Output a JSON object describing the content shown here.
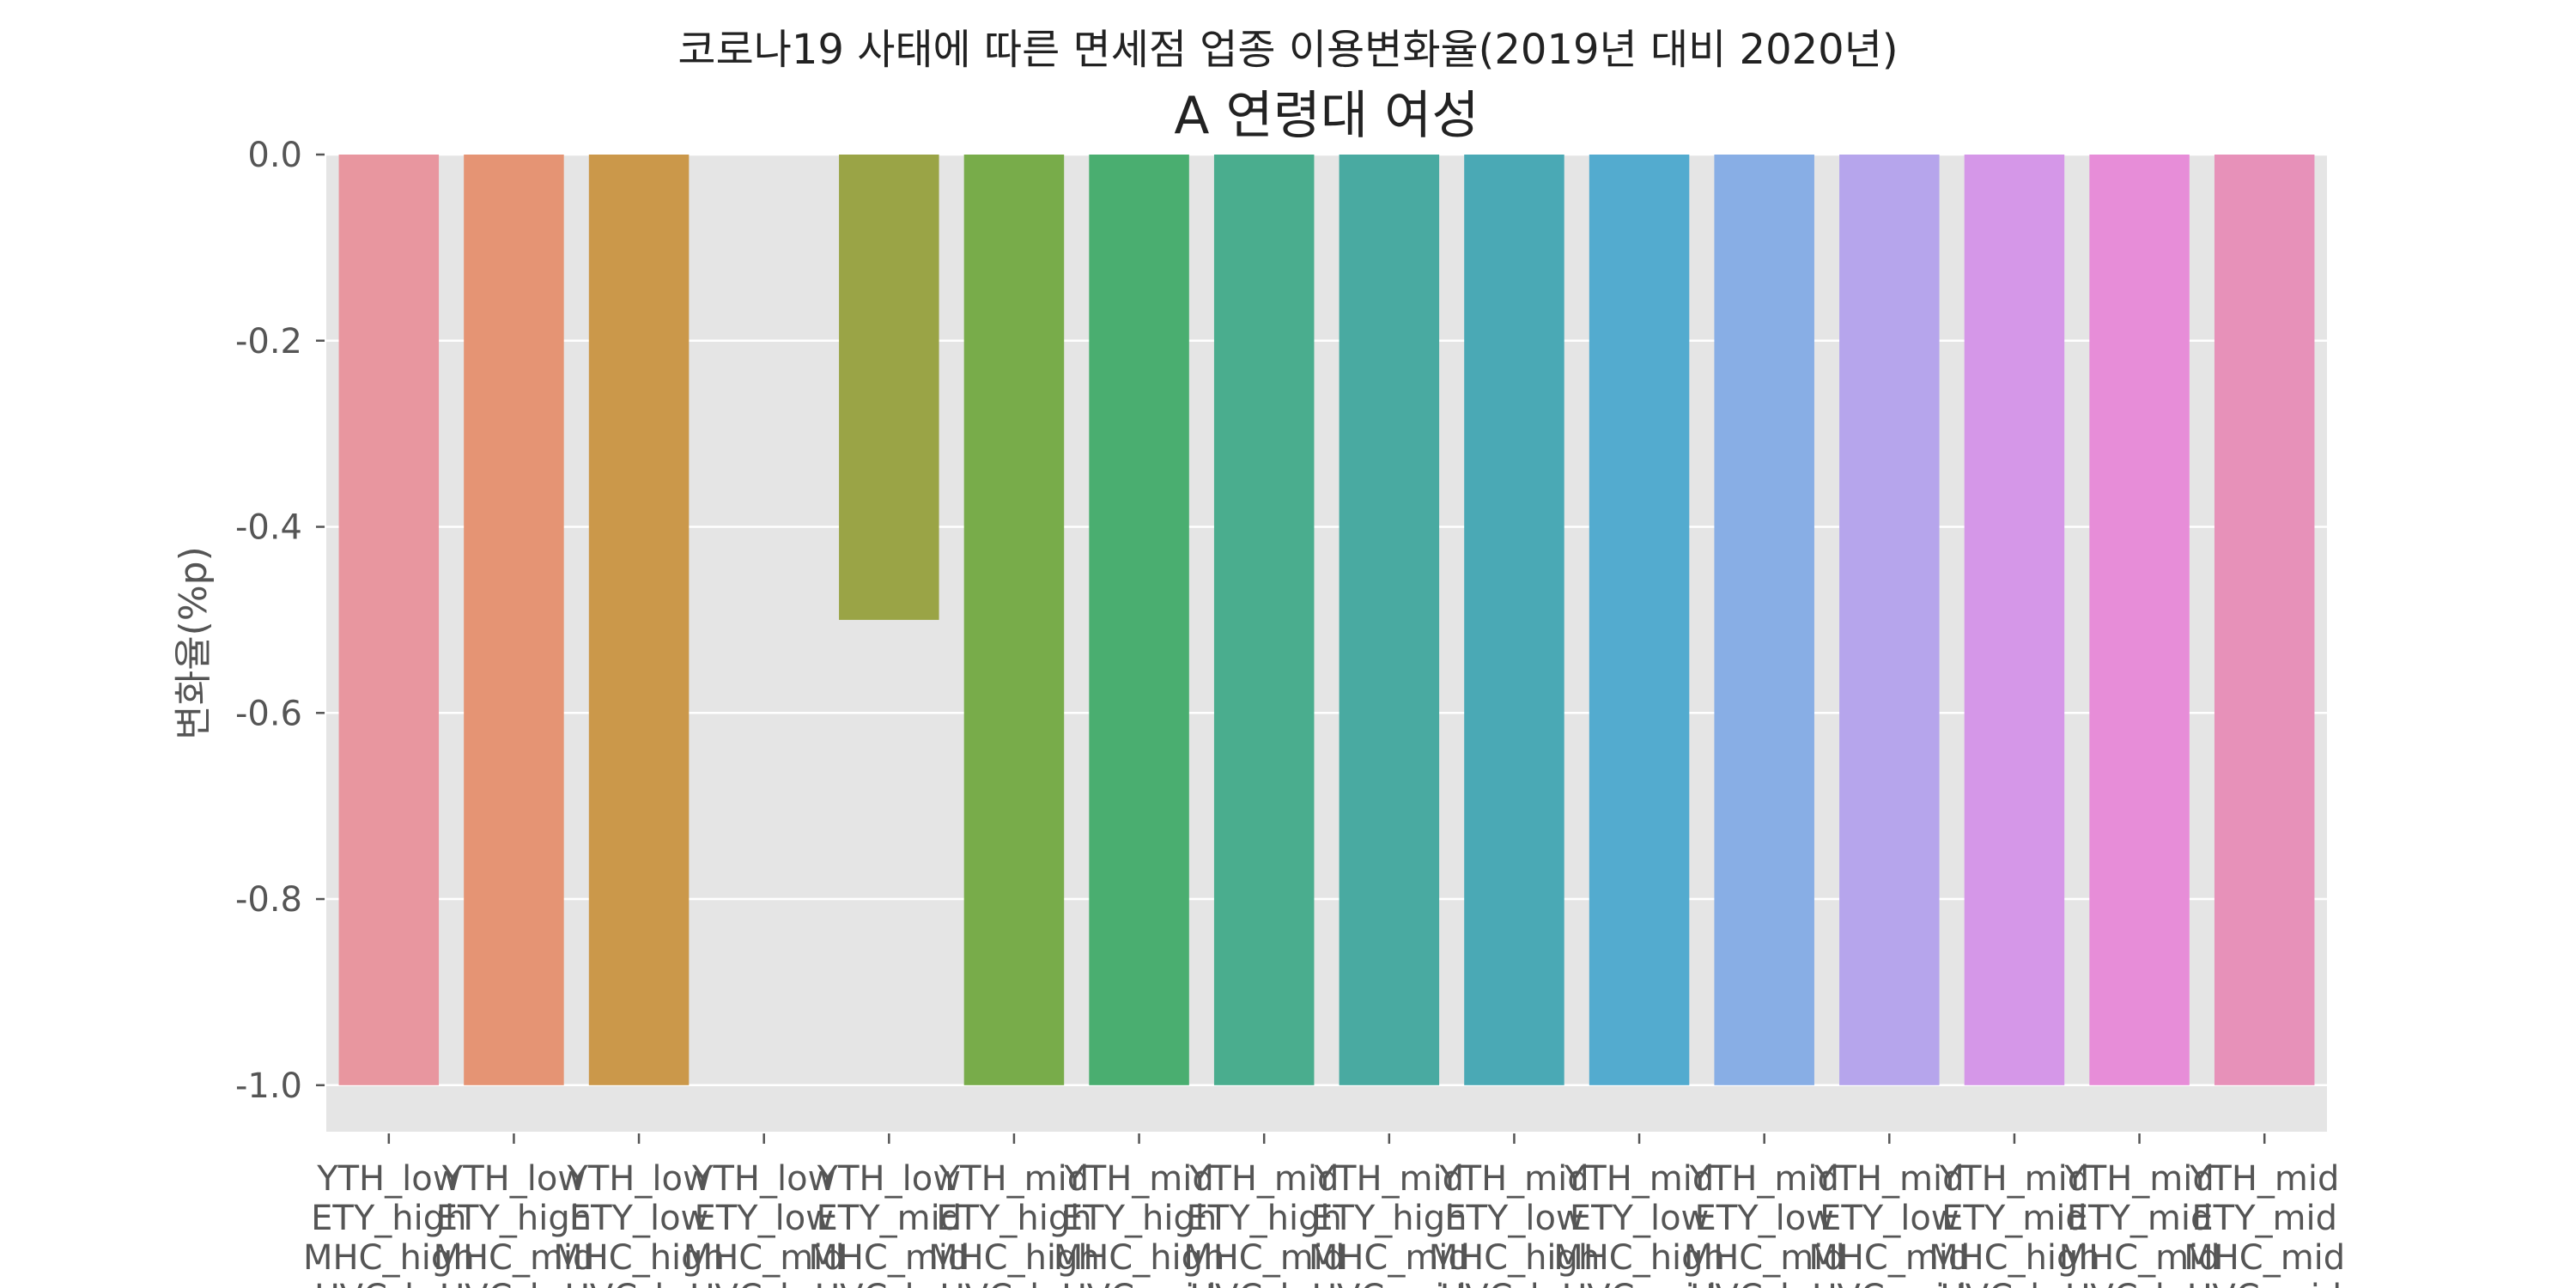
{
  "suptitle": "코로나19 사태에 따른 면세점 업종 이용변화율(2019년 대비 2020년)",
  "chart_data": {
    "type": "bar",
    "title": "A 연령대 여성",
    "xlabel": "",
    "ylabel": "변화율(%p)",
    "ylim": [
      -1.05,
      0.0
    ],
    "yticks": [
      0.0,
      -0.2,
      -0.4,
      -0.6,
      -0.8,
      -1.0
    ],
    "ytick_labels": [
      "0.0",
      "-0.2",
      "-0.4",
      "-0.6",
      "-0.8",
      "-1.0"
    ],
    "grid": true,
    "categories": [
      "YTH_low\nETY_high\nMHC_high\nUVC_low",
      "YTH_low\nETY_high\nMHC_mid\nUVC_low",
      "YTH_low\nETY_low\nMHC_high\nUVC_low",
      "YTH_low\nETY_low\nMHC_mid\nUVC_low",
      "YTH_low\nETY_mid\nMHC_mid\nUVC_low",
      "YTH_mid\nETY_high\nMHC_high\nUVC_low",
      "YTH_mid\nETY_high\nMHC_high\nUVC_mid",
      "YTH_mid\nETY_high\nMHC_mid\nUVC_low",
      "YTH_mid\nETY_high\nMHC_mid\nUVC_mid",
      "YTH_mid\nETY_low\nMHC_high\nUVC_low",
      "YTH_mid\nETY_low\nMHC_high\nUVC_mid",
      "YTH_mid\nETY_low\nMHC_mid\nUVC_low",
      "YTH_mid\nETY_low\nMHC_mid\nUVC_mid",
      "YTH_mid\nETY_mid\nMHC_high\nUVC_low",
      "YTH_mid\nETY_mid\nMHC_mid\nUVC_low",
      "YTH_mid\nETY_mid\nMHC_mid\nUVC_mid"
    ],
    "values": [
      -1.0,
      -1.0,
      -1.0,
      0.0,
      -0.5,
      -1.0,
      -1.0,
      -1.0,
      -1.0,
      -1.0,
      -1.0,
      -1.0,
      -1.0,
      -1.0,
      -1.0,
      -1.0
    ],
    "colors": [
      "#e8969f",
      "#e59474",
      "#cb984a",
      "#b5a13c",
      "#9aa446",
      "#78ac4a",
      "#4aae70",
      "#4aad8e",
      "#49aaa1",
      "#4aa9b5",
      "#53abcf",
      "#88aee5",
      "#b6a5ec",
      "#d597e8",
      "#e78dd8",
      "#e791b9"
    ],
    "background": "#e5e5e5",
    "grid_color": "#ffffff"
  }
}
